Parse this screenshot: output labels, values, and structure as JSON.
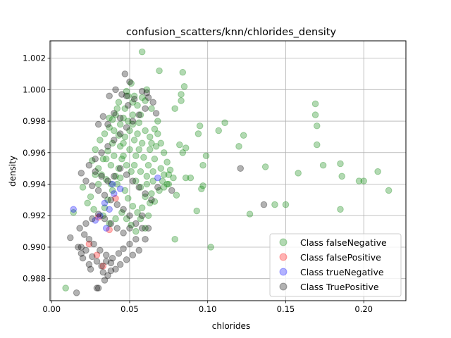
{
  "chart_data": {
    "type": "scatter",
    "title": "confusion_scatters/knn/chlorides_density",
    "xlabel": "chlorides",
    "ylabel": "density",
    "xlim": [
      -0.001,
      0.227
    ],
    "ylim": [
      0.9866,
      1.0031
    ],
    "grid": true,
    "legend_position": "lower right",
    "x_ticks": [
      0.0,
      0.05,
      0.1,
      0.15,
      0.2
    ],
    "x_tick_labels": [
      "0.00",
      "0.05",
      "0.10",
      "0.15",
      "0.20"
    ],
    "y_ticks": [
      0.988,
      0.99,
      0.992,
      0.994,
      0.996,
      0.998,
      1.0,
      1.002
    ],
    "y_tick_labels": [
      "0.988",
      "0.990",
      "0.992",
      "0.994",
      "0.996",
      "0.998",
      "1.000",
      "1.002"
    ],
    "series": [
      {
        "name": "Class falseNegative",
        "color": "#008000",
        "points": [
          [
            0.058,
            1.0024
          ],
          [
            0.069,
            1.0012
          ],
          [
            0.084,
            1.0011
          ],
          [
            0.085,
            1.0002
          ],
          [
            0.083,
            0.9997
          ],
          [
            0.083,
            0.9993
          ],
          [
            0.079,
            0.9988
          ],
          [
            0.111,
            0.9979
          ],
          [
            0.107,
            0.9974
          ],
          [
            0.095,
            0.9977
          ],
          [
            0.094,
            0.9972
          ],
          [
            0.123,
            0.9971
          ],
          [
            0.12,
            0.9964
          ],
          [
            0.099,
            0.9958
          ],
          [
            0.097,
            0.9952
          ],
          [
            0.086,
            0.9963
          ],
          [
            0.082,
            0.9965
          ],
          [
            0.084,
            0.996
          ],
          [
            0.169,
            0.9991
          ],
          [
            0.169,
            0.9984
          ],
          [
            0.17,
            0.9977
          ],
          [
            0.17,
            0.9965
          ],
          [
            0.185,
            0.9953
          ],
          [
            0.186,
            0.9945
          ],
          [
            0.174,
            0.9952
          ],
          [
            0.158,
            0.9947
          ],
          [
            0.137,
            0.9951
          ],
          [
            0.209,
            0.9948
          ],
          [
            0.197,
            0.9942
          ],
          [
            0.2,
            0.9942
          ],
          [
            0.216,
            0.9936
          ],
          [
            0.185,
            0.9924
          ],
          [
            0.15,
            0.9927
          ],
          [
            0.143,
            0.9927
          ],
          [
            0.127,
            0.9921
          ],
          [
            0.097,
            0.9939
          ],
          [
            0.096,
            0.9937
          ],
          [
            0.093,
            0.9923
          ],
          [
            0.079,
            0.9905
          ],
          [
            0.102,
            0.99
          ],
          [
            0.089,
            0.9944
          ],
          [
            0.086,
            0.9944
          ],
          [
            0.08,
            0.9933
          ],
          [
            0.075,
            0.994
          ],
          [
            0.075,
            0.9946
          ],
          [
            0.072,
            0.9938
          ],
          [
            0.066,
            0.9929
          ],
          [
            0.063,
            0.9928
          ],
          [
            0.061,
            0.9945
          ],
          [
            0.009,
            0.9874
          ],
          [
            0.014,
            0.9922
          ],
          [
            0.02,
            0.9938
          ],
          [
            0.068,
            0.998
          ],
          [
            0.064,
            0.9988
          ],
          [
            0.06,
            0.9993
          ],
          [
            0.061,
            1.0
          ],
          [
            0.058,
            0.9995
          ],
          [
            0.055,
            0.999
          ],
          [
            0.052,
            0.9992
          ],
          [
            0.049,
            0.9996
          ],
          [
            0.046,
            0.9982
          ],
          [
            0.042,
            0.9988
          ],
          [
            0.039,
            0.9981
          ],
          [
            0.037,
            0.9976
          ],
          [
            0.034,
            0.9972
          ],
          [
            0.031,
            0.9968
          ],
          [
            0.028,
            0.9962
          ],
          [
            0.026,
            0.9955
          ],
          [
            0.03,
            0.995
          ],
          [
            0.032,
            0.9946
          ],
          [
            0.035,
            0.9943
          ],
          [
            0.038,
            0.994
          ],
          [
            0.04,
            0.9958
          ],
          [
            0.044,
            0.9964
          ],
          [
            0.047,
            0.997
          ],
          [
            0.05,
            0.9974
          ],
          [
            0.053,
            0.9968
          ],
          [
            0.056,
            0.9962
          ],
          [
            0.059,
            0.9957
          ],
          [
            0.062,
            0.9952
          ],
          [
            0.065,
            0.9948
          ],
          [
            0.066,
            0.9956
          ],
          [
            0.067,
            0.9964
          ],
          [
            0.068,
            0.9972
          ],
          [
            0.07,
            0.9966
          ],
          [
            0.072,
            0.996
          ],
          [
            0.074,
            0.9954
          ],
          [
            0.076,
            0.9949
          ],
          [
            0.078,
            0.9944
          ],
          [
            0.071,
            0.9942
          ],
          [
            0.069,
            0.9936
          ],
          [
            0.064,
            0.9934
          ],
          [
            0.06,
            0.9932
          ],
          [
            0.057,
            0.9938
          ],
          [
            0.054,
            0.9942
          ],
          [
            0.051,
            0.9948
          ],
          [
            0.048,
            0.9952
          ],
          [
            0.045,
            0.9956
          ],
          [
            0.043,
            0.995
          ],
          [
            0.041,
            0.9945
          ],
          [
            0.039,
            0.9936
          ],
          [
            0.036,
            0.993
          ],
          [
            0.034,
            0.9925
          ],
          [
            0.047,
            0.9936
          ],
          [
            0.049,
            0.9931
          ],
          [
            0.052,
            0.9926
          ],
          [
            0.055,
            0.9922
          ],
          [
            0.058,
            0.9925
          ],
          [
            0.044,
            0.9978
          ],
          [
            0.041,
            0.9984
          ],
          [
            0.047,
            0.9988
          ],
          [
            0.052,
            0.9984
          ],
          [
            0.056,
            0.9979
          ],
          [
            0.06,
            0.9974
          ],
          [
            0.063,
            0.997
          ],
          [
            0.066,
            0.9975
          ],
          [
            0.054,
            0.9958
          ],
          [
            0.05,
            0.9962
          ],
          [
            0.046,
            0.9966
          ],
          [
            0.043,
            0.9971
          ],
          [
            0.039,
            0.9966
          ],
          [
            0.036,
            0.9961
          ],
          [
            0.033,
            0.9956
          ],
          [
            0.03,
            0.994
          ],
          [
            0.028,
            0.9946
          ],
          [
            0.025,
            0.9932
          ],
          [
            0.023,
            0.9928
          ],
          [
            0.027,
            0.9924
          ],
          [
            0.033,
            0.992
          ],
          [
            0.037,
            0.9915
          ],
          [
            0.041,
            0.9918
          ],
          [
            0.045,
            0.9922
          ],
          [
            0.048,
            0.9918
          ],
          [
            0.051,
            0.9914
          ],
          [
            0.054,
            0.991
          ],
          [
            0.057,
            0.9918
          ],
          [
            0.06,
            0.9912
          ],
          [
            0.062,
            0.992
          ],
          [
            0.042,
            0.994
          ],
          [
            0.044,
            0.9944
          ],
          [
            0.038,
            0.9952
          ],
          [
            0.035,
            0.9956
          ],
          [
            0.053,
            0.9952
          ],
          [
            0.057,
            0.9948
          ],
          [
            0.061,
            0.994
          ],
          [
            0.065,
            0.9942
          ],
          [
            0.07,
            0.995
          ],
          [
            0.072,
            0.9946
          ],
          [
            0.074,
            0.994
          ],
          [
            0.063,
            0.9962
          ],
          [
            0.064,
            0.9966
          ],
          [
            0.058,
            0.9966
          ],
          [
            0.055,
            0.9972
          ],
          [
            0.052,
            0.9978
          ],
          [
            0.049,
            0.998
          ],
          [
            0.046,
            0.9958
          ],
          [
            0.04,
            0.9974
          ],
          [
            0.037,
            0.9982
          ],
          [
            0.043,
            0.9992
          ],
          [
            0.048,
            0.9999
          ],
          [
            0.051,
            1.0004
          ],
          [
            0.053,
            0.9996
          ],
          [
            0.057,
            0.9984
          ]
        ]
      },
      {
        "name": "Class falsePositive",
        "color": "#ff0000",
        "points": [
          [
            0.033,
            0.9888
          ],
          [
            0.029,
            0.9895
          ],
          [
            0.024,
            0.9902
          ],
          [
            0.037,
            0.9911
          ],
          [
            0.041,
            0.9931
          ],
          [
            0.03,
            0.9919
          ]
        ]
      },
      {
        "name": "Class trueNegative",
        "color": "#0000ff",
        "points": [
          [
            0.014,
            0.9924
          ],
          [
            0.068,
            0.9944
          ],
          [
            0.04,
            0.9934
          ],
          [
            0.034,
            0.9928
          ],
          [
            0.037,
            0.9924
          ],
          [
            0.031,
            0.992
          ],
          [
            0.028,
            0.9917
          ],
          [
            0.035,
            0.9912
          ],
          [
            0.039,
            0.994
          ],
          [
            0.044,
            0.9937
          ]
        ]
      },
      {
        "name": "Class TruePositive",
        "color": "#000000",
        "points": [
          [
            0.016,
            0.9871
          ],
          [
            0.03,
            0.9874
          ],
          [
            0.029,
            0.9874
          ],
          [
            0.034,
            0.9879
          ],
          [
            0.036,
            0.9882
          ],
          [
            0.038,
            0.9885
          ],
          [
            0.033,
            0.9884
          ],
          [
            0.025,
            0.9886
          ],
          [
            0.024,
            0.9889
          ],
          [
            0.02,
            0.9893
          ],
          [
            0.019,
            0.9896
          ],
          [
            0.017,
            0.99
          ],
          [
            0.012,
            0.9906
          ],
          [
            0.019,
            0.99
          ],
          [
            0.022,
            0.9898
          ],
          [
            0.026,
            0.9894
          ],
          [
            0.029,
            0.9891
          ],
          [
            0.032,
            0.9888
          ],
          [
            0.035,
            0.9891
          ],
          [
            0.039,
            0.9893
          ],
          [
            0.043,
            0.9896
          ],
          [
            0.046,
            0.9899
          ],
          [
            0.05,
            0.9902
          ],
          [
            0.054,
            0.9905
          ],
          [
            0.058,
            0.9912
          ],
          [
            0.06,
            0.9905
          ],
          [
            0.056,
            0.9898
          ],
          [
            0.052,
            0.9895
          ],
          [
            0.048,
            0.9892
          ],
          [
            0.044,
            0.9889
          ],
          [
            0.041,
            0.9886
          ],
          [
            0.038,
            0.989
          ],
          [
            0.035,
            0.9895
          ],
          [
            0.031,
            0.9898
          ],
          [
            0.027,
            0.9902
          ],
          [
            0.024,
            0.9905
          ],
          [
            0.021,
            0.9908
          ],
          [
            0.018,
            0.9912
          ],
          [
            0.022,
            0.9915
          ],
          [
            0.026,
            0.9918
          ],
          [
            0.03,
            0.9921
          ],
          [
            0.034,
            0.9918
          ],
          [
            0.038,
            0.9915
          ],
          [
            0.042,
            0.9912
          ],
          [
            0.046,
            0.9909
          ],
          [
            0.05,
            0.9912
          ],
          [
            0.054,
            0.9915
          ],
          [
            0.05,
            0.992
          ],
          [
            0.046,
            0.9924
          ],
          [
            0.042,
            0.9927
          ],
          [
            0.038,
            0.993
          ],
          [
            0.034,
            0.9933
          ],
          [
            0.03,
            0.9936
          ],
          [
            0.026,
            0.9939
          ],
          [
            0.022,
            0.9942
          ],
          [
            0.019,
            0.9947
          ],
          [
            0.024,
            0.9952
          ],
          [
            0.028,
            0.9948
          ],
          [
            0.032,
            0.9945
          ],
          [
            0.036,
            0.9942
          ],
          [
            0.04,
            0.9945
          ],
          [
            0.044,
            0.995
          ],
          [
            0.048,
            0.9946
          ],
          [
            0.052,
            0.9942
          ],
          [
            0.056,
            0.9938
          ],
          [
            0.06,
            0.9934
          ],
          [
            0.064,
            0.993
          ],
          [
            0.068,
            0.9938
          ],
          [
            0.077,
            0.9936
          ],
          [
            0.121,
            0.995
          ],
          [
            0.136,
            0.9927
          ],
          [
            0.062,
            0.9912
          ],
          [
            0.058,
            0.992
          ],
          [
            0.028,
            0.9956
          ],
          [
            0.032,
            0.996
          ],
          [
            0.036,
            0.9964
          ],
          [
            0.04,
            0.9968
          ],
          [
            0.044,
            0.9972
          ],
          [
            0.048,
            0.9976
          ],
          [
            0.052,
            0.998
          ],
          [
            0.056,
            0.9984
          ],
          [
            0.06,
            0.9988
          ],
          [
            0.065,
            0.9992
          ],
          [
            0.067,
            0.9985
          ],
          [
            0.062,
            0.9995
          ],
          [
            0.058,
            0.9999
          ],
          [
            0.053,
            0.9994
          ],
          [
            0.049,
            0.999
          ],
          [
            0.045,
            0.9997
          ],
          [
            0.041,
            1.0
          ],
          [
            0.037,
            0.9996
          ],
          [
            0.033,
            0.9983
          ],
          [
            0.03,
            0.9978
          ],
          [
            0.036,
            0.9978
          ],
          [
            0.04,
            0.9985
          ],
          [
            0.044,
            0.9982
          ],
          [
            0.047,
            1.001
          ],
          [
            0.05,
            1.0005
          ],
          [
            0.061,
            0.9998
          ],
          [
            0.048,
            0.9996
          ]
        ]
      }
    ]
  }
}
